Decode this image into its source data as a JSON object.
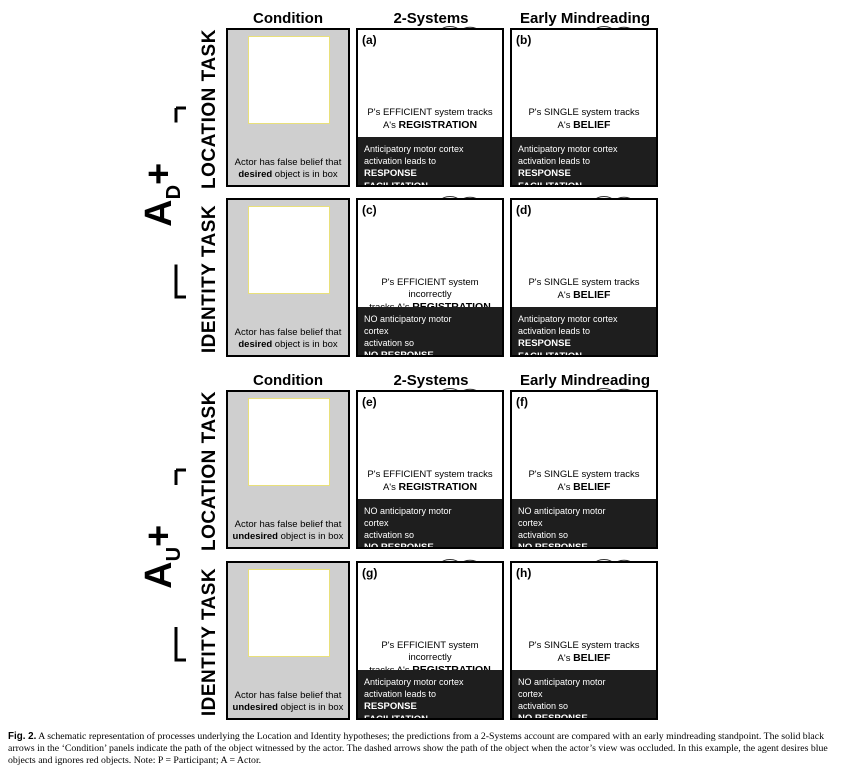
{
  "headers": {
    "condition": "Condition",
    "two_systems": "2-Systems",
    "early": "Early Mindreading"
  },
  "groups": [
    {
      "label_main": "A",
      "label_sub": "D",
      "label_plus": "+",
      "rows": [
        {
          "task": "LOCATION TASK",
          "cond_text": "Actor has false belief that",
          "cond_bold": "desired",
          "cond_tail": "object is in box",
          "cond_obj": "blue",
          "thought_left": "blue",
          "thought_right": "blue",
          "left": {
            "label": "(a)",
            "l1": "P's EFFICIENT system tracks",
            "l2a": "A's ",
            "l2b": "REGISTRATION",
            "f1": "Anticipatory motor cortex",
            "f2": "activation leads to",
            "f3": "RESPONSE FACILITATION",
            "mark": "check"
          },
          "right": {
            "label": "(b)",
            "l1": "P's SINGLE system tracks",
            "l2a": "A's ",
            "l2b": "BELIEF",
            "f1": "Anticipatory motor cortex",
            "f2": "activation leads to",
            "f3": "RESPONSE FACILITATION",
            "mark": "check"
          }
        },
        {
          "task": "IDENTITY TASK",
          "cond_text": "Actor has false belief that",
          "cond_bold": "desired",
          "cond_tail": "object is in box",
          "cond_obj": "robot-red",
          "thought_left": "robot-red",
          "thought_right": "robot-blue",
          "left": {
            "label": "(c)",
            "l1": "P's EFFICIENT system incorrectly",
            "l2a": "tracks A's ",
            "l2b": "REGISTRATION",
            "f1": "NO anticipatory motor cortex",
            "f2": "activation so",
            "f3": "NO RESPONSE FACILITATION",
            "mark": "cross"
          },
          "right": {
            "label": "(d)",
            "l1": "P's SINGLE system tracks",
            "l2a": "A's ",
            "l2b": "BELIEF",
            "f1": "Anticipatory motor cortex",
            "f2": "activation leads to",
            "f3": "RESPONSE FACILITATION",
            "mark": "check"
          }
        }
      ]
    },
    {
      "label_main": "A",
      "label_sub": "U",
      "label_plus": "+",
      "rows": [
        {
          "task": "LOCATION TASK",
          "cond_text": "Actor has false belief that",
          "cond_bold": "undesired",
          "cond_tail": "object is in box",
          "cond_obj": "red",
          "thought_left": "red",
          "thought_right": "red",
          "left": {
            "label": "(e)",
            "l1": "P's EFFICIENT system tracks",
            "l2a": "A's ",
            "l2b": "REGISTRATION",
            "f1": "NO anticipatory motor cortex",
            "f2": "activation so",
            "f3": "NO RESPONSE FACILITATION",
            "mark": "cross"
          },
          "right": {
            "label": "(f)",
            "l1": "P's SINGLE system tracks",
            "l2a": "A's ",
            "l2b": "BELIEF",
            "f1": "NO anticipatory motor cortex",
            "f2": "activation so",
            "f3": "NO RESPONSE FACILITATION",
            "mark": "cross"
          }
        },
        {
          "task": "IDENTITY TASK",
          "cond_text": "Actor has false belief that",
          "cond_bold": "undesired",
          "cond_tail": "object is in box",
          "cond_obj": "robot-blue",
          "thought_left": "robot-blue",
          "thought_right": "robot-red",
          "left": {
            "label": "(g)",
            "l1": "P's EFFICIENT system incorrectly",
            "l2a": "tracks A's ",
            "l2b": "REGISTRATION",
            "f1": "Anticipatory motor cortex",
            "f2": "activation leads to",
            "f3": "RESPONSE FACILITATION",
            "mark": "check"
          },
          "right": {
            "label": "(h)",
            "l1": "P's SINGLE system tracks",
            "l2a": "A's ",
            "l2b": "BELIEF",
            "f1": "NO anticipatory motor cortex",
            "f2": "activation so",
            "f3": "NO RESPONSE FACILITATION",
            "mark": "cross"
          }
        }
      ]
    }
  ],
  "colors": {
    "blue": "#3b4fa8",
    "red": "#d7261e",
    "mark": "#f2e629",
    "footer": "#1e1e1e",
    "cond_bg": "#cfcfcf"
  },
  "caption": {
    "fig": "Fig. 2.",
    "text": "A schematic representation of processes underlying the Location and Identity hypotheses; the predictions from a 2-Systems account are compared with an early mindreading standpoint. The solid black arrows in the ‘Condition’ panels indicate the path of the object witnessed by the actor. The dashed arrows show the path of the object when the actor’s view was occluded. In this example, the agent desires blue objects and ignores red objects. Note: P = Participant; A = Actor."
  }
}
